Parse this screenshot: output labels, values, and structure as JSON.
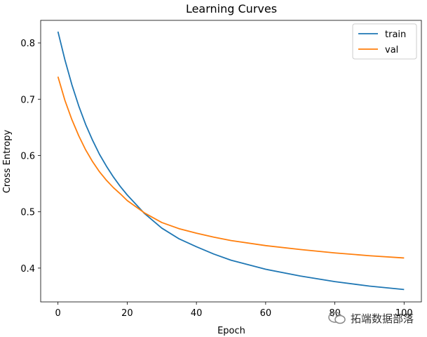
{
  "chart_data": {
    "type": "line",
    "title": "Learning Curves",
    "xlabel": "Epoch",
    "ylabel": "Cross Entropy",
    "xlim": [
      -5,
      105
    ],
    "ylim": [
      0.34,
      0.84
    ],
    "xticks": [
      0,
      20,
      40,
      60,
      80,
      100
    ],
    "xtick_labels": [
      "0",
      "20",
      "40",
      "60",
      "80",
      "100"
    ],
    "yticks": [
      0.4,
      0.5,
      0.6,
      0.7,
      0.8
    ],
    "ytick_labels": [
      "0.4",
      "0.5",
      "0.6",
      "0.7",
      "0.8"
    ],
    "grid": false,
    "legend_position": "upper right",
    "series": [
      {
        "name": "train",
        "color": "#1f77b4",
        "x": [
          0,
          2,
          4,
          6,
          8,
          10,
          12,
          14,
          16,
          18,
          20,
          25,
          30,
          35,
          40,
          45,
          50,
          60,
          70,
          80,
          90,
          100
        ],
        "values": [
          0.82,
          0.77,
          0.726,
          0.688,
          0.655,
          0.627,
          0.602,
          0.581,
          0.562,
          0.545,
          0.53,
          0.497,
          0.471,
          0.452,
          0.438,
          0.425,
          0.414,
          0.398,
          0.386,
          0.376,
          0.368,
          0.362
        ]
      },
      {
        "name": "val",
        "color": "#ff7f0e",
        "x": [
          0,
          2,
          4,
          6,
          8,
          10,
          12,
          14,
          16,
          18,
          20,
          25,
          30,
          35,
          40,
          45,
          50,
          60,
          70,
          80,
          90,
          100
        ],
        "values": [
          0.74,
          0.698,
          0.664,
          0.635,
          0.61,
          0.589,
          0.571,
          0.556,
          0.543,
          0.532,
          0.52,
          0.498,
          0.481,
          0.47,
          0.462,
          0.455,
          0.449,
          0.44,
          0.433,
          0.427,
          0.422,
          0.418
        ]
      }
    ]
  },
  "watermark": {
    "text": "拓端数据部落",
    "icon": "wechat-icon"
  }
}
